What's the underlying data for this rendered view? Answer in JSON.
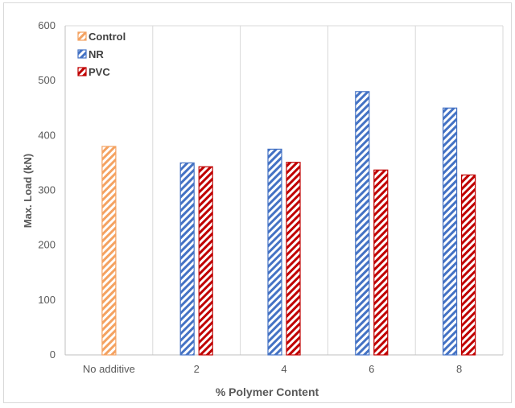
{
  "chart_data": {
    "type": "bar",
    "categories": [
      "No additive",
      "2",
      "4",
      "6",
      "8"
    ],
    "series": [
      {
        "name": "Control",
        "color": "#f4a261",
        "values": [
          380,
          null,
          null,
          null,
          null
        ]
      },
      {
        "name": "NR",
        "color": "#4472c4",
        "values": [
          null,
          350,
          375,
          480,
          450
        ]
      },
      {
        "name": "PVC",
        "color": "#c00000",
        "values": [
          null,
          343,
          351,
          337,
          328
        ]
      }
    ],
    "xlabel": "% Polymer Content",
    "ylabel": "Max. Load (kN)",
    "ylim": [
      0,
      600
    ],
    "yticks": [
      "0",
      "100",
      "200",
      "300",
      "400",
      "500",
      "600"
    ],
    "grid": "vertical",
    "legend_position": "top-left",
    "fill_pattern": "diagonal-hatch"
  }
}
